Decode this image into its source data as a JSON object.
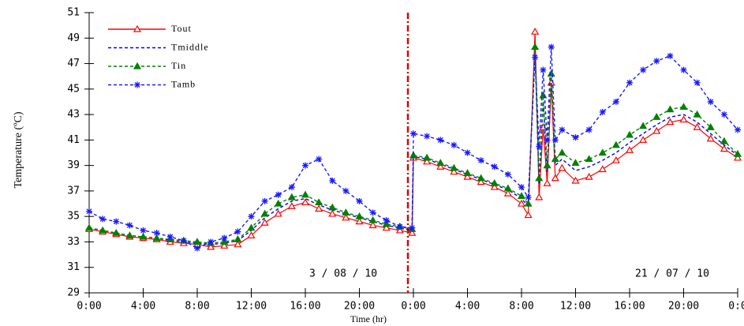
{
  "chart_data": {
    "type": "line",
    "y_label": "Temperature (ºC)",
    "x_label": "Time (hr)",
    "annotations": [
      "3 / 08 / 10",
      "21 / 07 / 10"
    ],
    "x": [
      0,
      1,
      2,
      3,
      4,
      5,
      6,
      7,
      8,
      9,
      10,
      11,
      12,
      13,
      14,
      15,
      16,
      17,
      18,
      19,
      20,
      21,
      22,
      23,
      23.9,
      24,
      25,
      26,
      27,
      28,
      29,
      30,
      31,
      32,
      32.5,
      33,
      33.3,
      33.6,
      33.9,
      34.2,
      34.5,
      35,
      36,
      37,
      38,
      39,
      40,
      41,
      42,
      43,
      44,
      45,
      46,
      47,
      48
    ],
    "series": [
      {
        "name": "Tout",
        "color": "#ff0000",
        "dash": false,
        "marker": "triangle-open",
        "values": [
          34.0,
          33.8,
          33.6,
          33.4,
          33.3,
          33.2,
          33.0,
          32.9,
          32.8,
          32.6,
          32.7,
          32.8,
          33.5,
          34.5,
          35.2,
          35.8,
          36.1,
          35.6,
          35.2,
          34.9,
          34.6,
          34.3,
          34.1,
          33.9,
          33.7,
          39.6,
          39.3,
          38.9,
          38.5,
          38.1,
          37.7,
          37.3,
          36.8,
          36.0,
          35.1,
          49.5,
          36.5,
          42.0,
          37.6,
          45.5,
          38.0,
          38.8,
          37.8,
          38.1,
          38.7,
          39.4,
          40.2,
          41.0,
          41.7,
          42.4,
          42.6,
          42.0,
          41.1,
          40.3,
          39.6
        ]
      },
      {
        "name": "Tmiddle",
        "color": "#0000ff",
        "dash": true,
        "marker": "none",
        "values": [
          34.1,
          33.9,
          33.7,
          33.5,
          33.4,
          33.3,
          33.1,
          33.0,
          32.9,
          32.8,
          32.9,
          33.1,
          33.9,
          34.9,
          35.6,
          36.2,
          36.4,
          35.9,
          35.5,
          35.2,
          34.9,
          34.6,
          34.3,
          34.1,
          33.9,
          39.7,
          39.5,
          39.1,
          38.7,
          38.3,
          37.9,
          37.5,
          37.1,
          36.4,
          35.8,
          48.0,
          37.5,
          44.0,
          38.5,
          46.0,
          39.0,
          39.5,
          38.6,
          38.9,
          39.4,
          40.0,
          40.8,
          41.5,
          42.2,
          42.8,
          43.0,
          42.4,
          41.5,
          40.6,
          39.8
        ]
      },
      {
        "name": "Tin",
        "color": "#008000",
        "dash": true,
        "marker": "triangle",
        "values": [
          34.1,
          33.9,
          33.7,
          33.5,
          33.4,
          33.3,
          33.2,
          33.1,
          33.0,
          32.9,
          33.0,
          33.2,
          34.1,
          35.2,
          36.0,
          36.5,
          36.7,
          36.1,
          35.7,
          35.3,
          35.0,
          34.7,
          34.4,
          34.2,
          34.0,
          39.8,
          39.6,
          39.2,
          38.8,
          38.4,
          38.0,
          37.6,
          37.2,
          36.6,
          36.0,
          48.3,
          38.0,
          44.5,
          39.0,
          46.2,
          39.5,
          40.0,
          39.2,
          39.5,
          40.0,
          40.6,
          41.4,
          42.1,
          42.8,
          43.4,
          43.6,
          43.0,
          42.0,
          40.9,
          39.9
        ]
      },
      {
        "name": "Tamb",
        "color": "#1a1aff",
        "dash": true,
        "marker": "star",
        "values": [
          35.4,
          34.8,
          34.6,
          34.3,
          33.9,
          33.7,
          33.4,
          33.1,
          32.5,
          33.0,
          33.3,
          33.8,
          35.0,
          36.2,
          36.7,
          37.3,
          39.0,
          39.5,
          37.8,
          37.0,
          36.2,
          35.3,
          34.7,
          34.2,
          34.1,
          41.5,
          41.3,
          41.0,
          40.6,
          40.0,
          39.4,
          38.9,
          38.3,
          37.3,
          36.5,
          47.5,
          40.5,
          46.5,
          41.0,
          48.3,
          41.0,
          41.8,
          41.2,
          41.8,
          43.2,
          44.0,
          45.5,
          46.5,
          47.2,
          47.6,
          46.5,
          45.5,
          44.0,
          43.0,
          41.8
        ]
      }
    ],
    "xlim": [
      0,
      48
    ],
    "xticks": [
      {
        "value": 0,
        "label": "0:00"
      },
      {
        "value": 4,
        "label": "4:00"
      },
      {
        "value": 8,
        "label": "8:00"
      },
      {
        "value": 12,
        "label": "12:00"
      },
      {
        "value": 16,
        "label": "16:00"
      },
      {
        "value": 20,
        "label": "20:00"
      },
      {
        "value": 24,
        "label": "0:00"
      },
      {
        "value": 28,
        "label": "4:00"
      },
      {
        "value": 32,
        "label": "8:00"
      },
      {
        "value": 36,
        "label": "12:00"
      },
      {
        "value": 40,
        "label": "16:00"
      },
      {
        "value": 44,
        "label": "20:00"
      },
      {
        "value": 48,
        "label": "0:0"
      }
    ],
    "ylim": [
      29,
      51
    ],
    "yticks": [
      29,
      31,
      33,
      35,
      37,
      39,
      41,
      43,
      45,
      47,
      49,
      51
    ],
    "grid": false,
    "legend": "upper left"
  }
}
